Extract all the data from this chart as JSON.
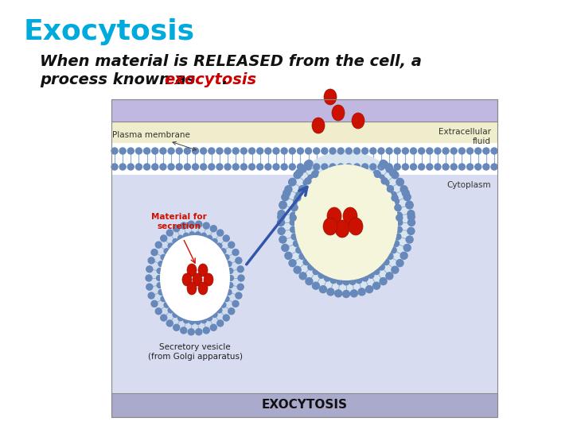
{
  "title": "Exocytosis",
  "title_color": "#00AADD",
  "title_fontsize": 26,
  "body_text_line1": "When material is RELEASED from the cell, a",
  "body_text_line2": "process known as ",
  "body_text_highlight": "exocytosis",
  "body_text_end": ".",
  "body_fontsize": 14,
  "highlight_color": "#CC0000",
  "text_color": "#111111",
  "bg_color": "#FFFFFF",
  "diagram_label_EXOCYTOSIS": "EXOCYTOSIS",
  "diagram_label_plasma": "Plasma membrane",
  "diagram_label_extracellular": "Extracellular\nfluid",
  "diagram_label_cytoplasm": "Cytoplasm",
  "diagram_label_material": "Material for\nsecretion",
  "diagram_label_secretory": "Secretory vesicle\n(from Golgi apparatus)",
  "diagram_footer_bg": "#AAAACC",
  "diagram_top_band_bg": "#C0B8E0",
  "diagram_extracell_bg": "#F0EDCC",
  "diagram_cyto_bg": "#D8DCF0",
  "membrane_head_color": "#6688BB",
  "membrane_tail_color": "#8AAAD0",
  "red_color": "#CC1100",
  "red_edge_color": "#991100",
  "arrow_color": "#3355AA",
  "diagram_bg": "#D8DCF0"
}
